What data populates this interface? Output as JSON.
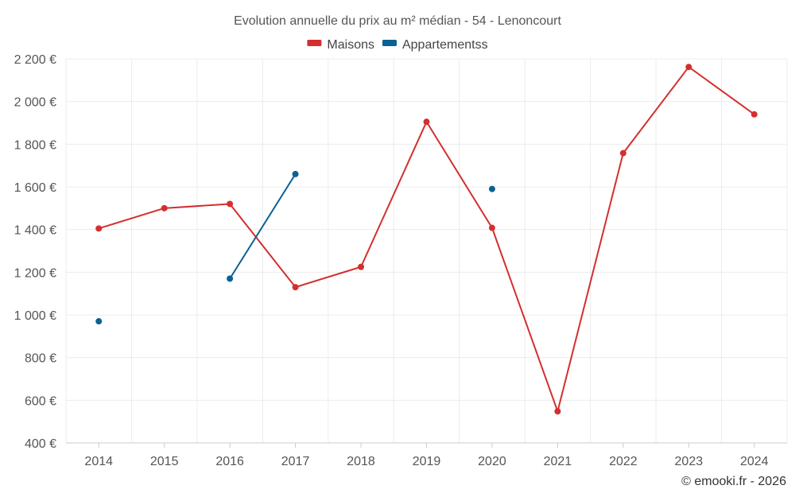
{
  "chart_data": {
    "type": "line",
    "title": "Evolution annuelle du prix au m² médian - 54 - Lenoncourt",
    "categories": [
      "2014",
      "2015",
      "2016",
      "2017",
      "2018",
      "2019",
      "2020",
      "2021",
      "2022",
      "2023",
      "2024"
    ],
    "series": [
      {
        "name": "Maisons",
        "color": "#d32f2f",
        "values": [
          1405,
          1500,
          1520,
          1130,
          1225,
          1905,
          1408,
          548,
          1758,
          2162,
          1940
        ]
      },
      {
        "name": "Appartementss",
        "color": "#0a6194",
        "values": [
          970,
          null,
          1170,
          1660,
          null,
          null,
          1590,
          null,
          null,
          null,
          null
        ]
      }
    ],
    "ylim": [
      400,
      2200
    ],
    "yticks": [
      400,
      600,
      800,
      1000,
      1200,
      1400,
      1600,
      1800,
      2000,
      2200
    ],
    "ytick_labels": [
      "400 €",
      "600 €",
      "800 €",
      "1 000 €",
      "1 200 €",
      "1 400 €",
      "1 600 €",
      "1 800 €",
      "2 000 €",
      "2 200 €"
    ],
    "grid": true,
    "legend_position": "top-center",
    "xlabel": "",
    "ylabel": ""
  },
  "credit": "© emooki.fr - 2026"
}
